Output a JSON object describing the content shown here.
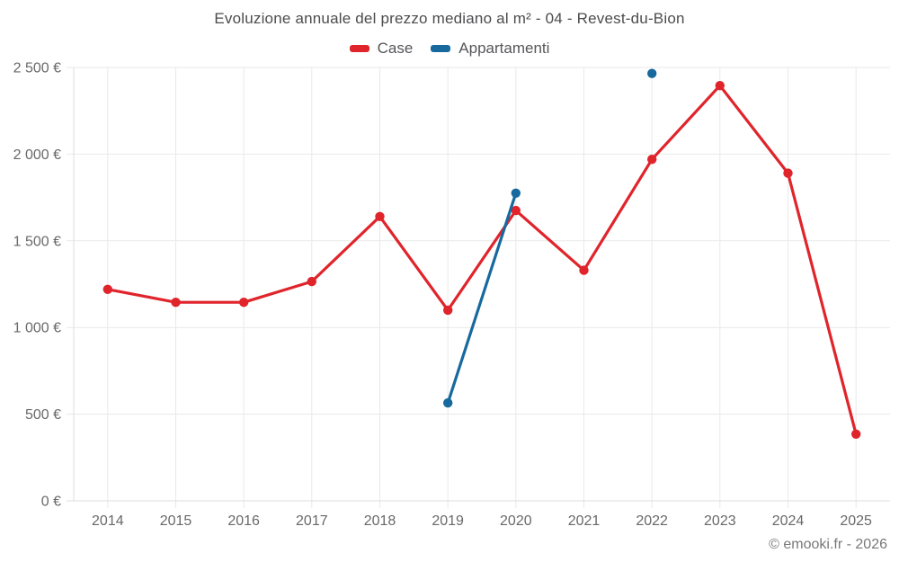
{
  "chart_data": {
    "type": "line",
    "title": "Evoluzione annuale del prezzo mediano al m² - 04 - Revest-du-Bion",
    "categories": [
      "2014",
      "2015",
      "2016",
      "2017",
      "2018",
      "2019",
      "2020",
      "2021",
      "2022",
      "2023",
      "2024",
      "2025"
    ],
    "series": [
      {
        "name": "Case",
        "color": "#e0242b",
        "values": [
          1220,
          1145,
          1145,
          1265,
          1640,
          1100,
          1675,
          1330,
          1970,
          2395,
          1890,
          385
        ]
      },
      {
        "name": "Appartamenti",
        "color": "#17699e",
        "values": [
          null,
          null,
          null,
          null,
          null,
          565,
          1775,
          null,
          2465,
          null,
          null,
          null
        ]
      }
    ],
    "xlabel": "",
    "ylabel": "",
    "ylim": [
      0,
      2500
    ],
    "ytick_step": 500,
    "ytick_labels": [
      "0 €",
      "500 €",
      "1 000 €",
      "1 500 €",
      "2 000 €",
      "2 500 €"
    ],
    "grid": true,
    "legend_position": "top"
  },
  "legend": {
    "case_label": "Case",
    "appartamenti_label": "Appartamenti"
  },
  "footer": {
    "copyright": "© emooki.fr - 2026"
  },
  "colors": {
    "grid": "#e9e9e9",
    "axis": "#dddddd",
    "tick_text": "#69696b",
    "title_text": "#4c4c4e"
  }
}
